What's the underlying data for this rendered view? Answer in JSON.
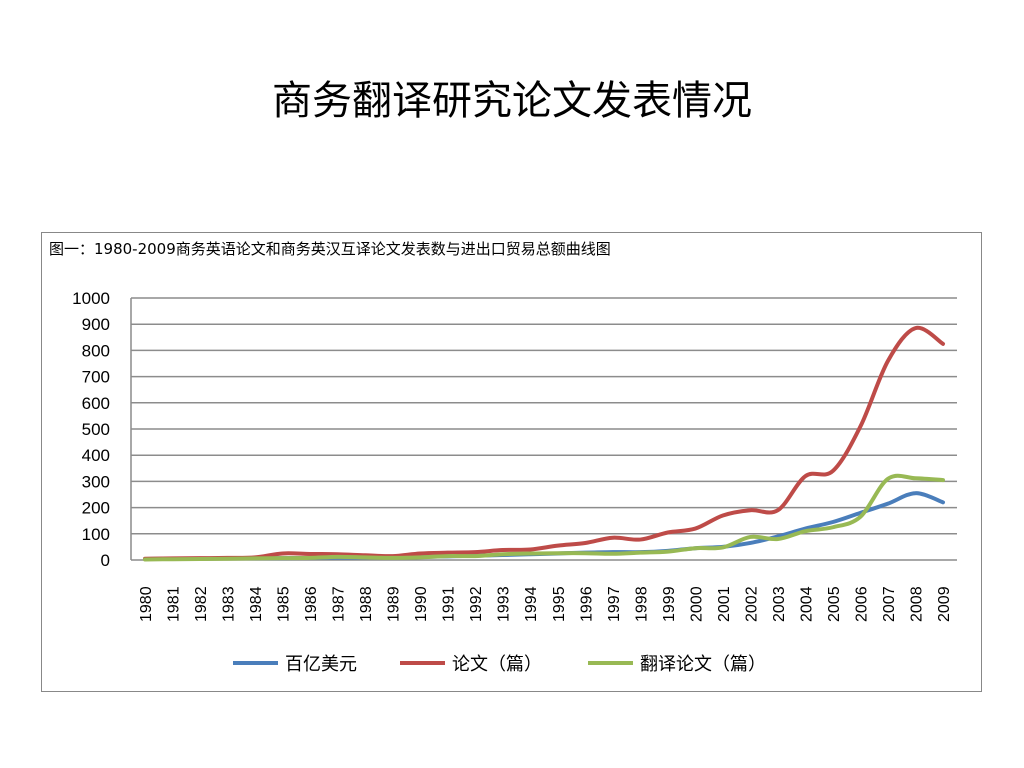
{
  "slide_title": "商务翻译研究论文发表情况",
  "chart_data": {
    "type": "line",
    "title": "图一：1980-2009商务英语论文和商务英汉互译论文发表数与进出口贸易总额曲线图",
    "categories": [
      "1980",
      "1981",
      "1982",
      "1983",
      "1984",
      "1985",
      "1986",
      "1987",
      "1988",
      "1989",
      "1990",
      "1991",
      "1992",
      "1993",
      "1994",
      "1995",
      "1996",
      "1997",
      "1998",
      "1999",
      "2000",
      "2001",
      "2002",
      "2003",
      "2004",
      "2005",
      "2006",
      "2007",
      "2008",
      "2009"
    ],
    "ylim": [
      0,
      1000
    ],
    "yticks": [
      "0",
      "100",
      "200",
      "300",
      "400",
      "500",
      "600",
      "700",
      "800",
      "900",
      "1000"
    ],
    "grid": true,
    "legend": "bottom",
    "series": [
      {
        "name": "百亿美元",
        "color": "#4a7ebb",
        "values": [
          4,
          5,
          5,
          6,
          7,
          7,
          8,
          9,
          9,
          10,
          12,
          14,
          16,
          19,
          22,
          25,
          28,
          30,
          30,
          35,
          45,
          50,
          65,
          90,
          120,
          145,
          180,
          215,
          255,
          220
        ]
      },
      {
        "name": "论文（篇）",
        "color": "#be4b48",
        "values": [
          5,
          6,
          7,
          8,
          10,
          25,
          23,
          22,
          18,
          15,
          25,
          28,
          30,
          38,
          40,
          55,
          65,
          85,
          78,
          105,
          120,
          170,
          190,
          190,
          320,
          340,
          510,
          760,
          885,
          825
        ]
      },
      {
        "name": "翻译论文（篇）",
        "color": "#98b954",
        "values": [
          2,
          3,
          4,
          5,
          6,
          7,
          8,
          12,
          10,
          8,
          10,
          15,
          15,
          22,
          25,
          26,
          26,
          24,
          28,
          32,
          45,
          48,
          88,
          80,
          110,
          125,
          165,
          310,
          312,
          305
        ]
      }
    ]
  }
}
